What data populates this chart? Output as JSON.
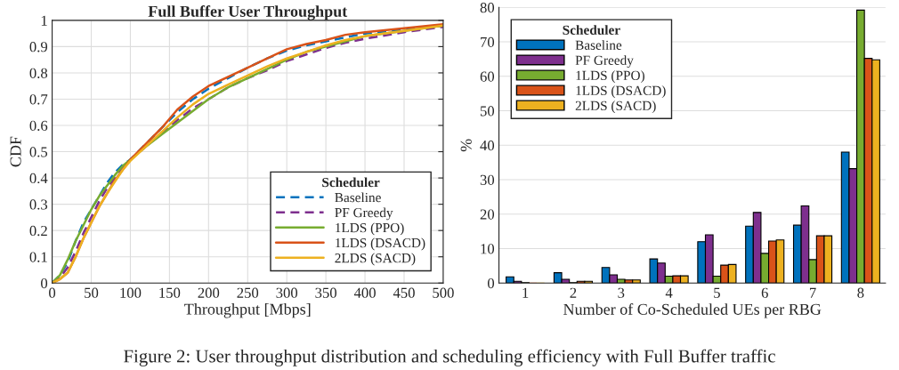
{
  "chart_data": [
    {
      "type": "line",
      "title": "Full Buffer User Throughput",
      "xlabel": "Throughput [Mbps]",
      "ylabel": "CDF",
      "legend_title": "Scheduler",
      "legend": "bottom right",
      "grid": true,
      "xlim": [
        0,
        500
      ],
      "xticks": [
        0,
        50,
        100,
        150,
        200,
        250,
        300,
        350,
        400,
        450,
        500
      ],
      "ylim": [
        0,
        1
      ],
      "yticks": [
        0,
        0.1,
        0.2,
        0.3,
        0.4,
        0.5,
        0.6,
        0.7,
        0.8,
        0.9,
        1
      ],
      "x": [
        0,
        10,
        20,
        30,
        40,
        50,
        60,
        70,
        80,
        90,
        100,
        120,
        140,
        160,
        180,
        200,
        225,
        250,
        275,
        300,
        325,
        350,
        375,
        400,
        450,
        500
      ],
      "annotations": [
        "Figure 2: User throughput distribution and scheduling efficiency with Full Buffer traffic"
      ],
      "series": [
        {
          "name": "Baseline",
          "color": "#0072bd",
          "line_style": "dashed",
          "values": [
            0,
            0.03,
            0.08,
            0.16,
            0.23,
            0.28,
            0.33,
            0.38,
            0.42,
            0.45,
            0.47,
            0.53,
            0.59,
            0.65,
            0.7,
            0.74,
            0.78,
            0.82,
            0.855,
            0.885,
            0.905,
            0.92,
            0.935,
            0.95,
            0.965,
            0.98
          ]
        },
        {
          "name": "PF Greedy",
          "color": "#7e2f8e",
          "line_style": "dashed",
          "values": [
            0,
            0.02,
            0.06,
            0.12,
            0.19,
            0.25,
            0.31,
            0.36,
            0.4,
            0.44,
            0.47,
            0.52,
            0.57,
            0.62,
            0.665,
            0.7,
            0.745,
            0.78,
            0.81,
            0.845,
            0.87,
            0.895,
            0.915,
            0.93,
            0.955,
            0.975
          ]
        },
        {
          "name": "1LDS (PPO)",
          "color": "#77ac30",
          "line_style": "solid",
          "values": [
            0,
            0.03,
            0.09,
            0.16,
            0.22,
            0.28,
            0.33,
            0.37,
            0.41,
            0.445,
            0.47,
            0.52,
            0.565,
            0.61,
            0.655,
            0.7,
            0.745,
            0.78,
            0.815,
            0.85,
            0.88,
            0.9,
            0.92,
            0.94,
            0.96,
            0.98
          ]
        },
        {
          "name": "1LDS (DSACD)",
          "color": "#d95319",
          "line_style": "solid",
          "values": [
            0,
            0.015,
            0.04,
            0.1,
            0.17,
            0.23,
            0.29,
            0.34,
            0.39,
            0.43,
            0.47,
            0.53,
            0.59,
            0.66,
            0.71,
            0.75,
            0.785,
            0.82,
            0.855,
            0.89,
            0.91,
            0.925,
            0.945,
            0.955,
            0.97,
            0.985
          ]
        },
        {
          "name": "2LDS (SACD)",
          "color": "#edb120",
          "line_style": "solid",
          "values": [
            0,
            0.015,
            0.04,
            0.1,
            0.17,
            0.23,
            0.29,
            0.34,
            0.385,
            0.43,
            0.465,
            0.52,
            0.575,
            0.63,
            0.68,
            0.72,
            0.755,
            0.79,
            0.825,
            0.855,
            0.88,
            0.905,
            0.925,
            0.94,
            0.96,
            0.98
          ]
        }
      ]
    },
    {
      "type": "bar",
      "xlabel": "Number of Co-Scheduled UEs per RBG",
      "ylabel": "%",
      "legend_title": "Scheduler",
      "legend": "top left",
      "grid": "y",
      "ylim": [
        0,
        80
      ],
      "yticks": [
        0,
        10,
        20,
        30,
        40,
        50,
        60,
        70,
        80
      ],
      "categories": [
        "1",
        "2",
        "3",
        "4",
        "5",
        "6",
        "7",
        "8"
      ],
      "series": [
        {
          "name": "Baseline",
          "color": "#0072bd",
          "values": [
            1.8,
            3.0,
            4.5,
            7.0,
            12.0,
            16.5,
            16.8,
            38.0
          ]
        },
        {
          "name": "PF Greedy",
          "color": "#7e2f8e",
          "values": [
            0.5,
            1.1,
            2.4,
            5.8,
            14.0,
            20.5,
            22.4,
            33.2
          ]
        },
        {
          "name": "1LDS (PPO)",
          "color": "#77ac30",
          "values": [
            0.1,
            0.1,
            1.1,
            2.0,
            2.0,
            8.6,
            6.8,
            79.2
          ]
        },
        {
          "name": "1LDS (DSACD)",
          "color": "#d95319",
          "values": [
            0.0,
            0.5,
            0.9,
            2.1,
            5.2,
            12.2,
            13.7,
            65.2
          ]
        },
        {
          "name": "2LDS (SACD)",
          "color": "#edb120",
          "values": [
            0.0,
            0.5,
            0.9,
            2.1,
            5.4,
            12.5,
            13.7,
            64.8
          ]
        }
      ]
    }
  ]
}
